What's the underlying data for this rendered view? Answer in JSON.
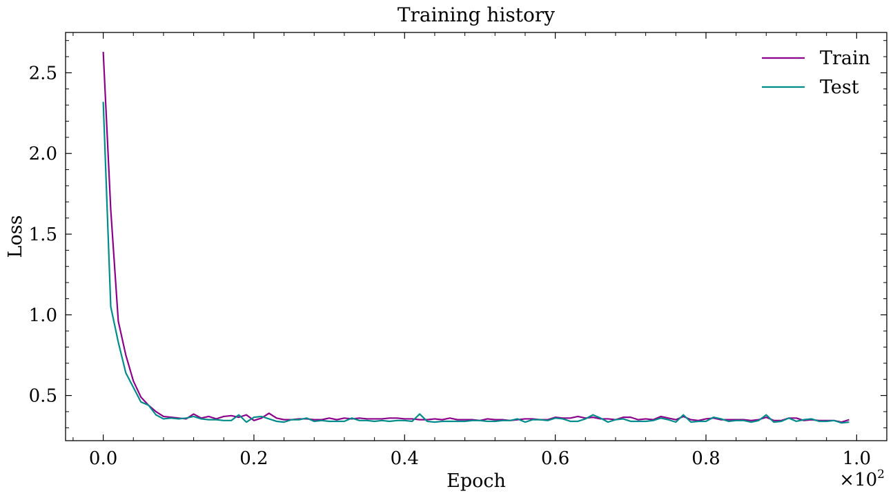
{
  "chart_data": {
    "type": "line",
    "title": "Training history",
    "xlabel": "Epoch",
    "ylabel": "Loss",
    "x_offset_label": "×10",
    "x_offset_exponent": "2",
    "xlim": [
      -0.05,
      1.04
    ],
    "ylim": [
      0.22,
      2.75
    ],
    "xticks": [
      0.0,
      0.2,
      0.4,
      0.6,
      0.8,
      1.0
    ],
    "xtick_labels": [
      "0.0",
      "0.2",
      "0.4",
      "0.6",
      "0.8",
      "1.0"
    ],
    "yticks": [
      0.5,
      1.0,
      1.5,
      2.0,
      2.5
    ],
    "ytick_labels": [
      "0.5",
      "1.0",
      "1.5",
      "2.0",
      "2.5"
    ],
    "grid": false,
    "legend_position": "top-right",
    "x_start": 0,
    "x_step": 0.01,
    "series": [
      {
        "name": "Train",
        "color": "#8B008B",
        "values": [
          2.63,
          1.65,
          0.96,
          0.75,
          0.59,
          0.49,
          0.44,
          0.4,
          0.37,
          0.365,
          0.36,
          0.355,
          0.385,
          0.36,
          0.37,
          0.355,
          0.37,
          0.375,
          0.365,
          0.38,
          0.345,
          0.36,
          0.39,
          0.36,
          0.35,
          0.35,
          0.355,
          0.355,
          0.35,
          0.35,
          0.36,
          0.35,
          0.36,
          0.355,
          0.36,
          0.355,
          0.355,
          0.355,
          0.36,
          0.36,
          0.355,
          0.355,
          0.35,
          0.35,
          0.355,
          0.35,
          0.36,
          0.35,
          0.35,
          0.35,
          0.345,
          0.355,
          0.35,
          0.35,
          0.345,
          0.35,
          0.355,
          0.355,
          0.35,
          0.35,
          0.365,
          0.36,
          0.36,
          0.37,
          0.36,
          0.365,
          0.355,
          0.355,
          0.35,
          0.365,
          0.365,
          0.35,
          0.355,
          0.35,
          0.37,
          0.36,
          0.35,
          0.37,
          0.35,
          0.345,
          0.355,
          0.36,
          0.35,
          0.35,
          0.35,
          0.35,
          0.345,
          0.35,
          0.365,
          0.345,
          0.345,
          0.36,
          0.36,
          0.345,
          0.35,
          0.345,
          0.345,
          0.345,
          0.335,
          0.35
        ]
      },
      {
        "name": "Test",
        "color": "#008B8B",
        "values": [
          2.32,
          1.05,
          0.83,
          0.64,
          0.55,
          0.46,
          0.44,
          0.38,
          0.355,
          0.36,
          0.355,
          0.36,
          0.37,
          0.355,
          0.35,
          0.35,
          0.345,
          0.345,
          0.38,
          0.335,
          0.365,
          0.37,
          0.355,
          0.34,
          0.335,
          0.35,
          0.35,
          0.36,
          0.34,
          0.345,
          0.34,
          0.34,
          0.34,
          0.36,
          0.345,
          0.345,
          0.34,
          0.345,
          0.34,
          0.345,
          0.345,
          0.34,
          0.385,
          0.34,
          0.335,
          0.34,
          0.34,
          0.34,
          0.34,
          0.345,
          0.345,
          0.34,
          0.34,
          0.345,
          0.345,
          0.355,
          0.335,
          0.35,
          0.35,
          0.345,
          0.36,
          0.355,
          0.34,
          0.34,
          0.355,
          0.38,
          0.36,
          0.335,
          0.35,
          0.355,
          0.34,
          0.34,
          0.34,
          0.345,
          0.36,
          0.35,
          0.335,
          0.38,
          0.335,
          0.34,
          0.34,
          0.365,
          0.355,
          0.34,
          0.345,
          0.345,
          0.335,
          0.345,
          0.38,
          0.335,
          0.34,
          0.36,
          0.34,
          0.35,
          0.355,
          0.34,
          0.34,
          0.345,
          0.33,
          0.335
        ]
      }
    ]
  }
}
